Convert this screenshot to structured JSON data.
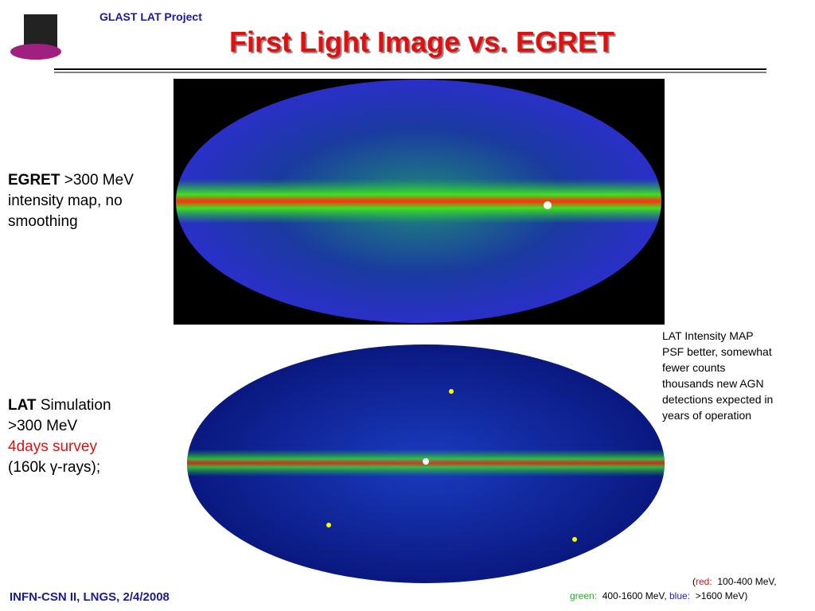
{
  "header": {
    "project": "GLAST LAT Project",
    "title": "First Light Image vs. EGRET"
  },
  "egret": {
    "name": "EGRET",
    "lines": [
      ">300 MeV",
      "intensity map, no",
      "smoothing"
    ]
  },
  "lat": {
    "name": "LAT",
    "lines": [
      "Simulation",
      ">300 MeV",
      "4days survey",
      "(160k γ-rays);"
    ]
  },
  "note": [
    "LAT Intensity MAP",
    "PSF better, somewhat",
    "fewer counts",
    "thousands new AGN",
    "detections expected in",
    "years of operation"
  ],
  "legend": {
    "red_label": "red:",
    "red_range": "100-400 MeV,",
    "green_label": "green:",
    "green_range": "400-1600 MeV,",
    "blue_label": "blue:",
    "blue_range": ">1600 MeV)"
  },
  "footer": "INFN-CSN II, LNGS, 2/4/2008"
}
